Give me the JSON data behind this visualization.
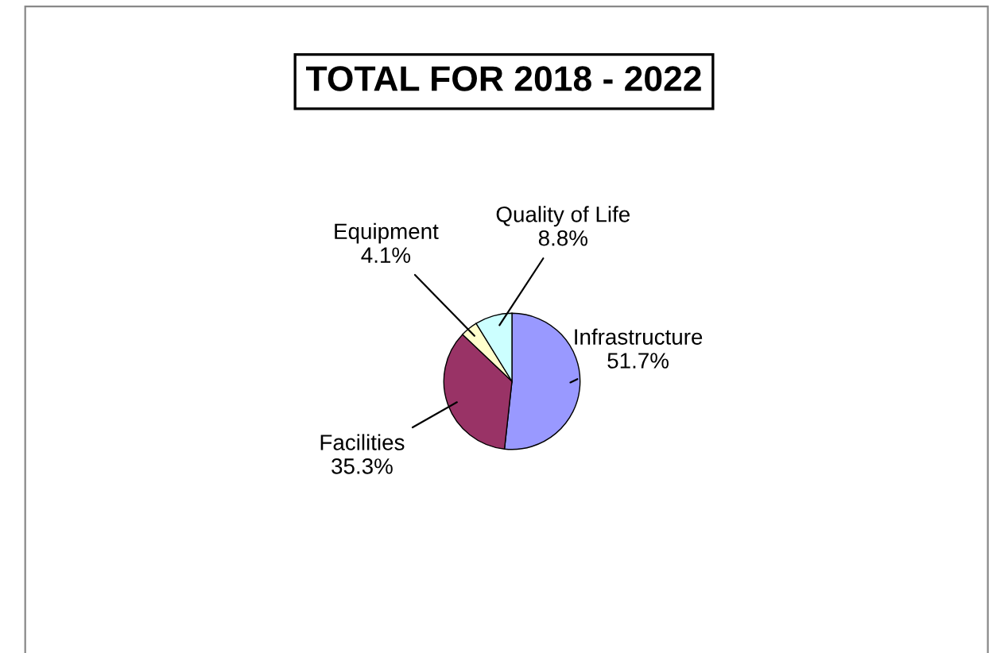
{
  "chart_data": {
    "type": "pie",
    "title": "TOTAL FOR 2018 - 2022",
    "categories": [
      "Infrastructure",
      "Facilities",
      "Equipment",
      "Quality of Life"
    ],
    "values": [
      51.7,
      35.3,
      4.1,
      8.8
    ],
    "value_labels": [
      "51.7%",
      "35.3%",
      "4.1%",
      "8.8%"
    ],
    "colors": [
      "#9999ff",
      "#993366",
      "#ffffcc",
      "#ccffff"
    ],
    "legend": false
  }
}
